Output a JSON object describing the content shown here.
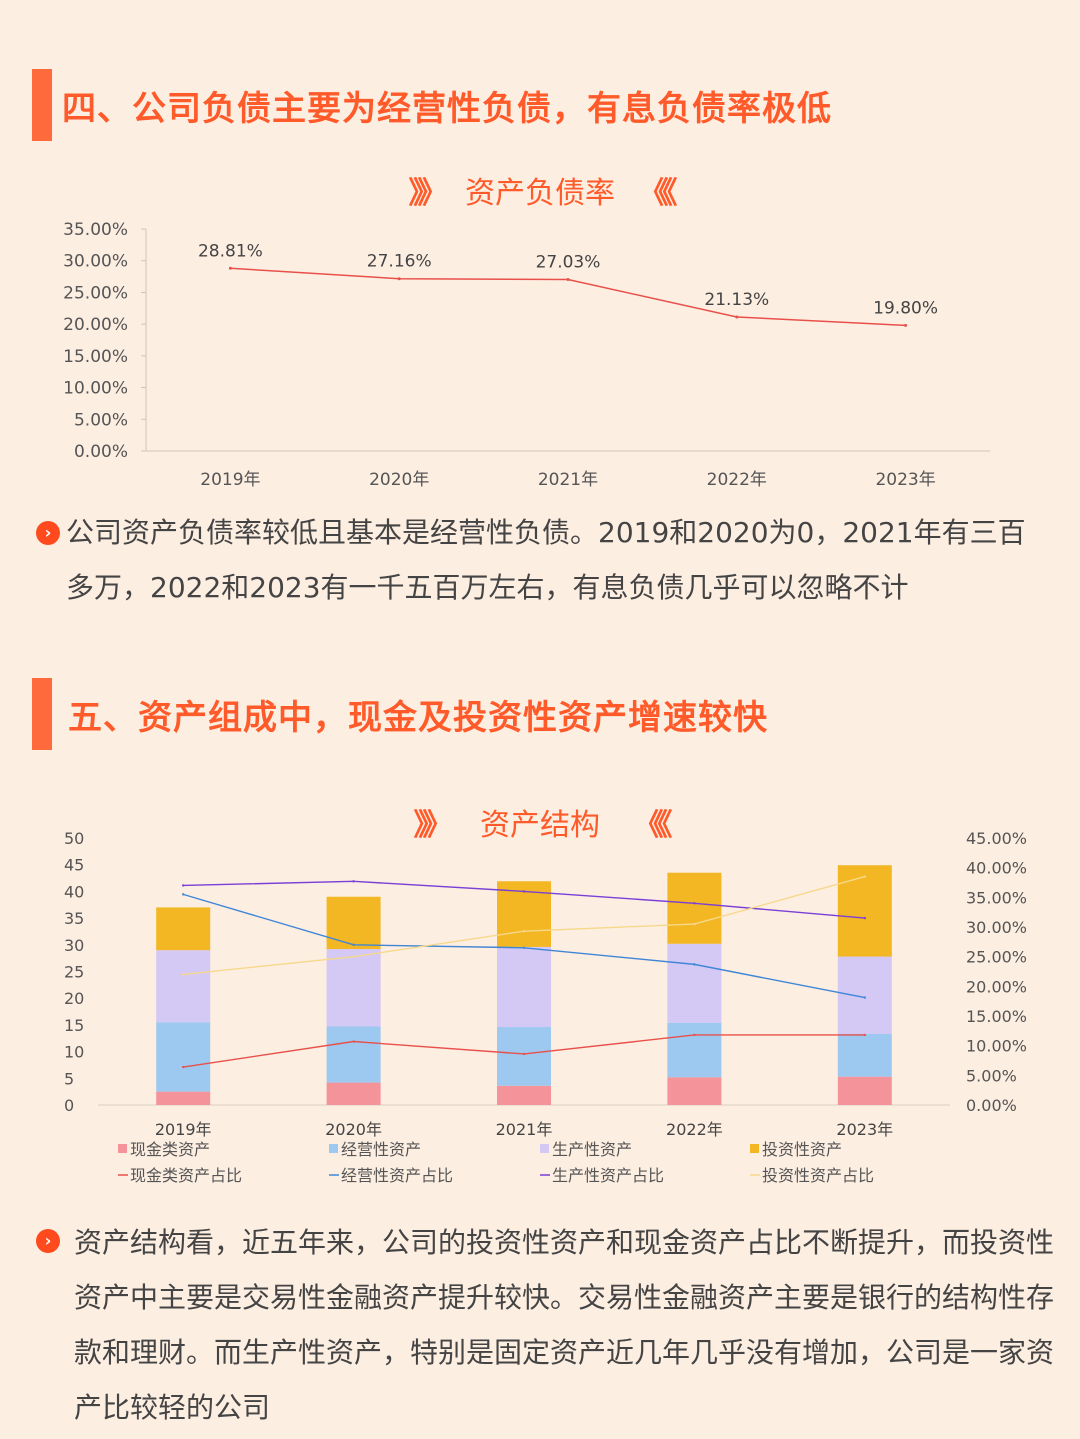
{
  "section1": {
    "title": "四、公司负债主要为经营性负债，有息负债率极低"
  },
  "section2": {
    "title": "五、资产组成中，现金及投资性资产增速较快"
  },
  "chevron_right": "》》",
  "chevron_left": "《《",
  "paragraph1": "公司资产负债率较低且基本是经营性负债。2019和2020为0，2021年有三百多万，2022和2023有一千五百万左右，有息负债几乎可以忽略不计",
  "paragraph2": "资产结构看，近五年来，公司的投资性资产和现金资产占比不断提升，而投资性资产中主要是交易性金融资产提升较快。交易性金融资产主要是银行的结构性存款和理财。而生产性资产，特别是固定资产近几年几乎没有增加，公司是一家资产比较轻的公司",
  "chart_data": [
    {
      "type": "line",
      "title": "资产负债率",
      "categories": [
        "2019年",
        "2020年",
        "2021年",
        "2022年",
        "2023年"
      ],
      "values": [
        28.81,
        27.16,
        27.03,
        21.13,
        19.8
      ],
      "data_labels": [
        "28.81%",
        "27.16%",
        "27.03%",
        "21.13%",
        "19.80%"
      ],
      "y_ticks": [
        "0.00%",
        "5.00%",
        "10.00%",
        "15.00%",
        "20.00%",
        "25.00%",
        "30.00%",
        "35.00%"
      ],
      "ylim": [
        0,
        35
      ],
      "color": "#e8504a",
      "grid": false
    },
    {
      "type": "bar",
      "stacked": true,
      "title": "资产结构",
      "categories": [
        "2019年",
        "2020年",
        "2021年",
        "2022年",
        "2023年"
      ],
      "ylim": [
        0,
        50
      ],
      "y_ticks": [
        "0",
        "5",
        "10",
        "15",
        "20",
        "25",
        "30",
        "35",
        "40",
        "45",
        "50"
      ],
      "y2lim": [
        0,
        45
      ],
      "y2_ticks": [
        "0.00%",
        "5.00%",
        "10.00%",
        "15.00%",
        "20.00%",
        "25.00%",
        "30.00%",
        "35.00%",
        "40.00%",
        "45.00%"
      ],
      "series": [
        {
          "name": "现金类资产",
          "color": "#f4939a",
          "values": [
            2.5,
            4.2,
            3.6,
            5.2,
            5.3
          ]
        },
        {
          "name": "经营性资产",
          "color": "#9dc8f0",
          "values": [
            13,
            10.5,
            11,
            10.2,
            8
          ]
        },
        {
          "name": "生产性资产",
          "color": "#d4c8f5",
          "values": [
            13.5,
            14.5,
            15,
            14.8,
            14.5
          ]
        },
        {
          "name": "投资性资产",
          "color": "#f2b722",
          "values": [
            8,
            9.8,
            12.3,
            13.3,
            17.1
          ]
        }
      ],
      "line_series": [
        {
          "name": "现金类资产占比",
          "color": "#e8504a",
          "values": [
            6.4,
            10.7,
            8.6,
            11.8,
            11.8
          ]
        },
        {
          "name": "经营性资产占比",
          "color": "#3f86d6",
          "values": [
            35.5,
            27.0,
            26.5,
            23.7,
            18.1
          ]
        },
        {
          "name": "生产性资产占比",
          "color": "#7a3fd6",
          "values": [
            37.0,
            37.7,
            36.0,
            34.0,
            31.5
          ]
        },
        {
          "name": "投资性资产占比",
          "color": "#f7d88a",
          "values": [
            22.0,
            25.0,
            29.3,
            30.5,
            38.5
          ]
        }
      ]
    }
  ]
}
